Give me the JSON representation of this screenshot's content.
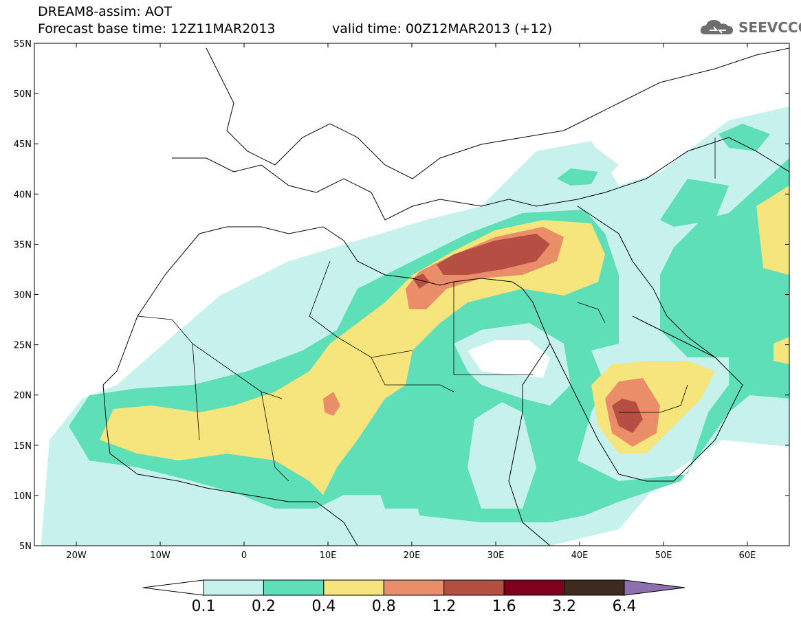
{
  "header": {
    "line1": "DREAM8-assim: AOT",
    "line2": "Forecast base time: 12Z11MAR2013",
    "valid": "valid time: 00Z12MAR2013 (+12)"
  },
  "logo": {
    "text": "SEEVCCC",
    "icon": "cloud-icon",
    "color": "#6e6e6e"
  },
  "map": {
    "lat_labels": [
      "55N",
      "50N",
      "45N",
      "40N",
      "35N",
      "30N",
      "25N",
      "20N",
      "15N",
      "10N",
      "5N"
    ],
    "lon_labels": [
      "20W",
      "10W",
      "0",
      "10E",
      "20E",
      "30E",
      "40E",
      "50E",
      "60E"
    ],
    "lon_range": [
      -25,
      65
    ],
    "lat_range": [
      5,
      55
    ]
  },
  "colorbar": {
    "labels": [
      "0.1",
      "0.2",
      "0.4",
      "0.8",
      "1.2",
      "1.6",
      "3.2",
      "6.4"
    ],
    "colors": [
      "#ffffff",
      "#c6f1ec",
      "#5fdfb7",
      "#f5e57c",
      "#e98e68",
      "#b54f44",
      "#800020",
      "#3e2a1e",
      "#8e6fb0"
    ]
  }
}
